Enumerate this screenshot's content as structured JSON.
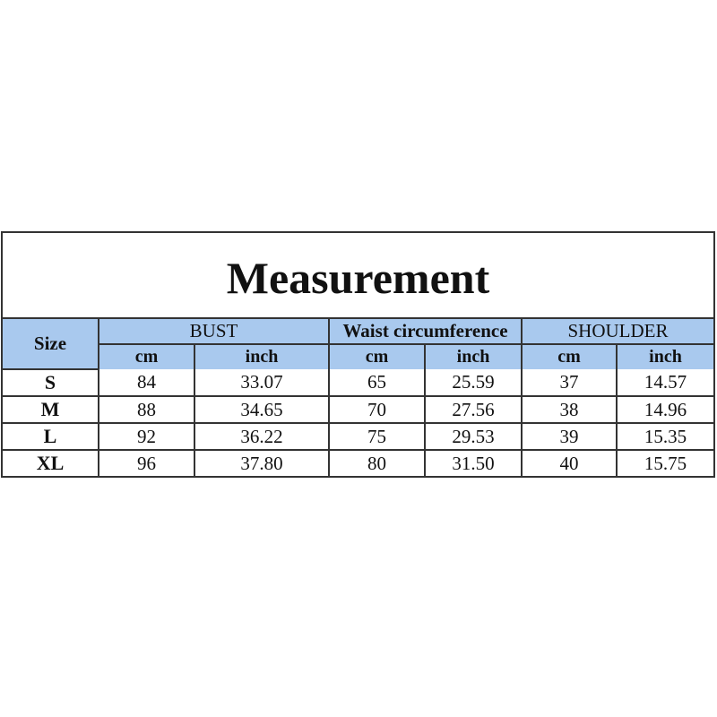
{
  "title": "Measurement",
  "header": {
    "size": "Size",
    "groups": [
      "BUST",
      "Waist circumference",
      "SHOULDER"
    ],
    "units": [
      "cm",
      "inch",
      "cm",
      "inch",
      "cm",
      "inch"
    ]
  },
  "rows": [
    {
      "size": "S",
      "values": [
        "84",
        "33.07",
        "65",
        "25.59",
        "37",
        "14.57"
      ]
    },
    {
      "size": "M",
      "values": [
        "88",
        "34.65",
        "70",
        "27.56",
        "38",
        "14.96"
      ]
    },
    {
      "size": "L",
      "values": [
        "92",
        "36.22",
        "75",
        "29.53",
        "39",
        "15.35"
      ]
    },
    {
      "size": "XL",
      "values": [
        "96",
        "37.80",
        "80",
        "31.50",
        "40",
        "15.75"
      ]
    }
  ],
  "colors": {
    "header_bg": "#a9c9ee",
    "border": "#333333"
  }
}
